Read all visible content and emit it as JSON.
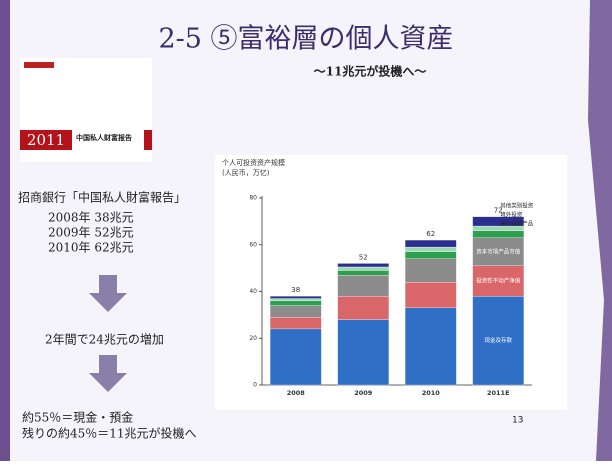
{
  "slide": {
    "title": "2-5 ⑤富裕層の個人資産",
    "subtitle": "～11兆元が投機へ～",
    "cover": {
      "year": "2011",
      "title": "中国私人财富报告"
    },
    "source": "招商銀行「中国私人財富報告」",
    "stats": [
      "2008年 38兆元",
      "2009年 52兆元",
      "2010年 62兆元"
    ],
    "summary": "2年間で24兆元の増加",
    "conclusion": [
      "約55％＝現金・預金",
      "残りの約45％＝11兆元が投機へ"
    ],
    "page_number": "13"
  },
  "chart_data": {
    "type": "bar",
    "stacked": true,
    "title": "个人可投资资产规模",
    "y_label": "(人民币，万亿)",
    "categories": [
      "2008",
      "2009",
      "2010",
      "2011E"
    ],
    "totals": [
      38,
      52,
      62,
      72
    ],
    "series": [
      {
        "name": "现金及存款",
        "color": "#2f6fc6",
        "values": [
          24,
          28,
          33,
          38
        ]
      },
      {
        "name": "投资性不动产净值",
        "color": "#d9676a",
        "values": [
          5,
          10,
          11,
          13
        ]
      },
      {
        "name": "资本市场产品市值",
        "color": "#8c8c8c",
        "values": [
          5,
          9,
          10,
          12
        ]
      },
      {
        "name": "银行理财产品",
        "color": "#2e9e4f",
        "values": [
          2,
          2,
          3,
          3
        ]
      },
      {
        "name": "境外投资",
        "color": "#9fd8b4",
        "values": [
          1,
          1.5,
          2,
          2
        ]
      },
      {
        "name": "其他类别投资",
        "color": "#2a2f8f",
        "values": [
          1,
          1.5,
          3,
          4
        ]
      }
    ],
    "ylim": [
      0,
      80
    ],
    "yticks": [
      0,
      20,
      40,
      60,
      80
    ]
  }
}
